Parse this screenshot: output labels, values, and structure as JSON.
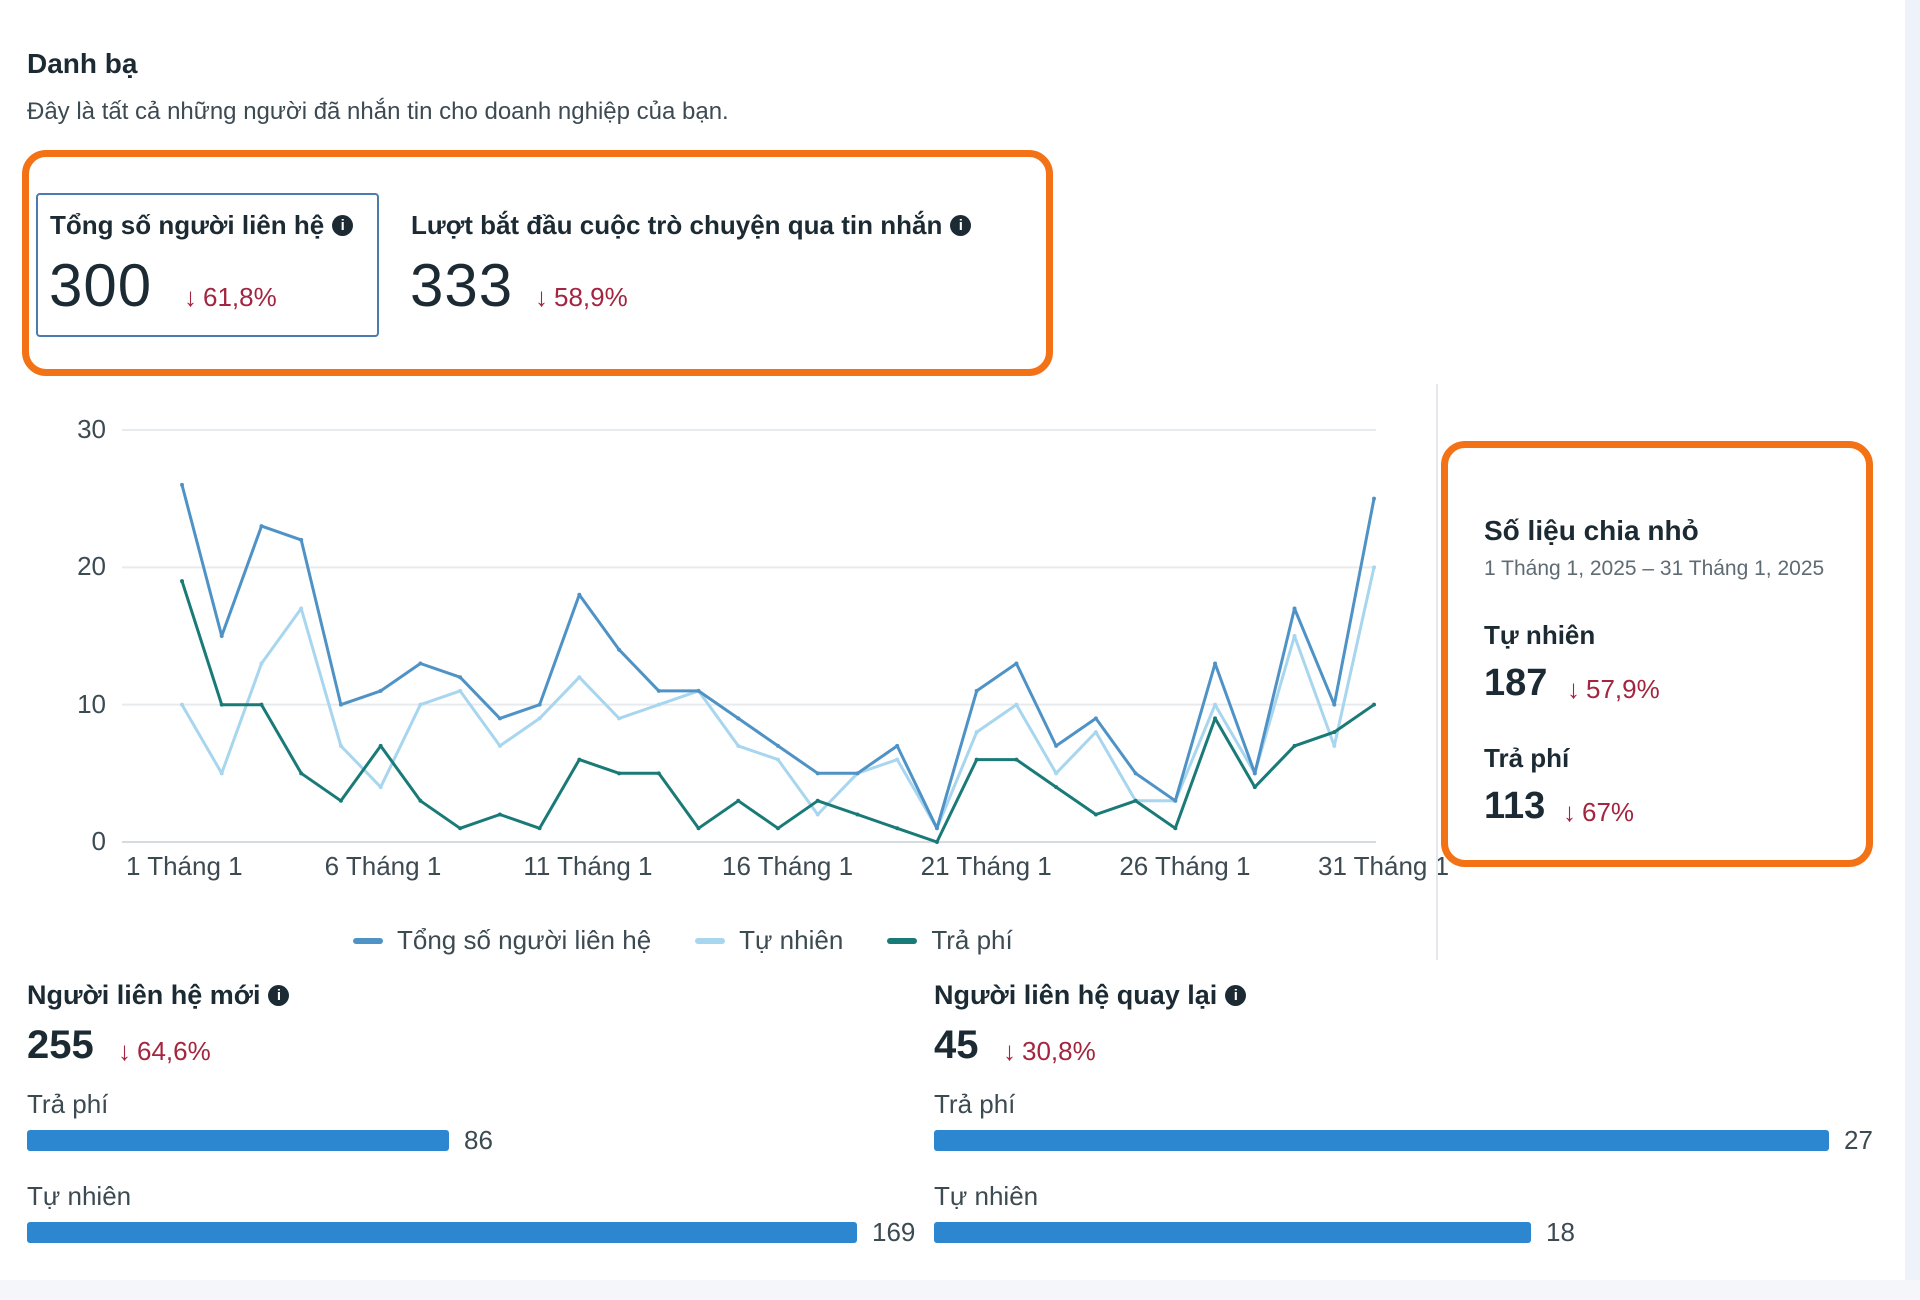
{
  "header": {
    "title": "Danh bạ",
    "subtitle": "Đây là tất cả những người đã nhắn tin cho doanh nghiệp của bạn."
  },
  "metrics": {
    "total_contacts": {
      "label": "Tổng số người liên hệ",
      "value": "300",
      "delta": "61,8%",
      "direction": "down"
    },
    "conversations_started": {
      "label": "Lượt bắt đầu cuộc trò chuyện qua tin nhắn",
      "value": "333",
      "delta": "58,9%",
      "direction": "down"
    }
  },
  "icons": {
    "info": "info-icon",
    "down_arrow": "arrow-down-icon"
  },
  "colors": {
    "highlight": "#f47216",
    "negative": "#a4253f",
    "total": "#4f93c6",
    "organic": "#a8d6ee",
    "paid": "#1a7a78",
    "bar": "#2d87d0"
  },
  "chart_data": {
    "type": "line",
    "x": [
      "1 Tháng 1",
      "2 Tháng 1",
      "3 Tháng 1",
      "4 Tháng 1",
      "5 Tháng 1",
      "6 Tháng 1",
      "7 Tháng 1",
      "8 Tháng 1",
      "9 Tháng 1",
      "10 Tháng 1",
      "11 Tháng 1",
      "12 Tháng 1",
      "13 Tháng 1",
      "14 Tháng 1",
      "15 Tháng 1",
      "16 Tháng 1",
      "17 Tháng 1",
      "18 Tháng 1",
      "19 Tháng 1",
      "20 Tháng 1",
      "21 Tháng 1",
      "22 Tháng 1",
      "23 Tháng 1",
      "24 Tháng 1",
      "25 Tháng 1",
      "26 Tháng 1",
      "27 Tháng 1",
      "28 Tháng 1",
      "29 Tháng 1",
      "30 Tháng 1",
      "31 Tháng 1"
    ],
    "xtick_labels": [
      "1 Tháng 1",
      "6 Tháng 1",
      "11 Tháng 1",
      "16 Tháng 1",
      "21 Tháng 1",
      "26 Tháng 1",
      "31 Tháng 1"
    ],
    "ylim": [
      0,
      30
    ],
    "yticks": [
      0,
      10,
      20,
      30
    ],
    "grid": true,
    "legend_position": "bottom",
    "series": [
      {
        "name": "Tổng số người liên hệ",
        "color": "#4f93c6",
        "values": [
          26,
          15,
          23,
          22,
          10,
          11,
          13,
          12,
          9,
          10,
          18,
          14,
          11,
          11,
          9,
          7,
          5,
          5,
          7,
          1,
          11,
          13,
          7,
          9,
          5,
          3,
          13,
          5,
          17,
          10,
          25
        ]
      },
      {
        "name": "Tự nhiên",
        "color": "#a8d6ee",
        "values": [
          10,
          5,
          13,
          17,
          7,
          4,
          10,
          11,
          7,
          9,
          12,
          9,
          10,
          11,
          7,
          6,
          2,
          5,
          6,
          1,
          8,
          10,
          5,
          8,
          3,
          3,
          10,
          5,
          15,
          7,
          20
        ]
      },
      {
        "name": "Trả phí",
        "color": "#1a7a78",
        "values": [
          19,
          10,
          10,
          5,
          3,
          7,
          3,
          1,
          2,
          1,
          6,
          5,
          5,
          1,
          3,
          1,
          3,
          2,
          1,
          0,
          6,
          6,
          4,
          2,
          3,
          1,
          9,
          4,
          7,
          8,
          10
        ]
      }
    ]
  },
  "breakdown": {
    "title": "Số liệu chia nhỏ",
    "date_range": "1 Tháng 1, 2025 – 31 Tháng 1, 2025",
    "organic": {
      "label": "Tự nhiên",
      "value": "187",
      "delta": "57,9%",
      "direction": "down"
    },
    "paid": {
      "label": "Trả phí",
      "value": "113",
      "delta": "67%",
      "direction": "down"
    }
  },
  "new_contacts": {
    "label": "Người liên hệ mới",
    "value": "255",
    "delta": "64,6%",
    "direction": "down",
    "bars": [
      {
        "label": "Trả phí",
        "value": 86,
        "fraction": 0.509
      },
      {
        "label": "Tự nhiên",
        "value": 169,
        "fraction": 1.0
      }
    ]
  },
  "returning_contacts": {
    "label": "Người liên hệ quay lại",
    "value": "45",
    "delta": "30,8%",
    "direction": "down",
    "bars": [
      {
        "label": "Trả phí",
        "value": 27,
        "fraction": 1.0
      },
      {
        "label": "Tự nhiên",
        "value": 18,
        "fraction": 0.667
      }
    ]
  }
}
